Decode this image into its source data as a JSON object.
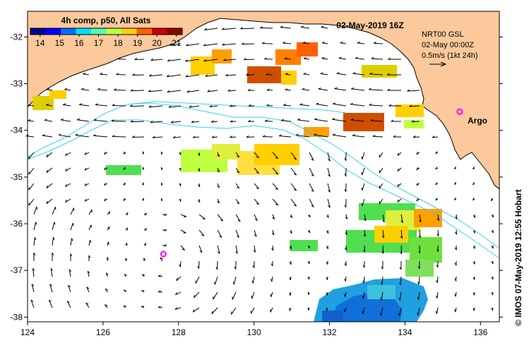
{
  "map": {
    "title": "02-May-2019 16Z",
    "colorbar": {
      "label": "4h comp, p50, All Sats",
      "ticks": [
        "14",
        "15",
        "16",
        "17",
        "18",
        "19",
        "20",
        "21"
      ],
      "min": 13.5,
      "max": 21.3,
      "colors": [
        "#00008f",
        "#0000ff",
        "#006fff",
        "#00dfff",
        "#4fffaf",
        "#bfff3f",
        "#ffcf00",
        "#ff6000",
        "#cf0000",
        "#8f0000"
      ]
    },
    "current_legend": {
      "line1": "NRT00 GSL",
      "line2": "02-May 00:00Z",
      "line3": "0.5m/s (1kt 24h)"
    },
    "argo_label": "Argo",
    "credit": "© IMOS 07-May-2019 12:55 Hobart",
    "lon_ticks": [
      "124",
      "126",
      "128",
      "130",
      "132",
      "134",
      "136"
    ],
    "lat_ticks": [
      "-32",
      "-33",
      "-34",
      "-35",
      "-36",
      "-37",
      "-38"
    ],
    "extent": {
      "lon_min": 124,
      "lon_max": 136.5,
      "lat_max": -31.45,
      "lat_min": -38.1
    },
    "argo_floats": [
      {
        "lon": 135.45,
        "lat": -33.6
      },
      {
        "lon": 127.6,
        "lat": -36.65
      }
    ],
    "colors": {
      "land": "#fbc99b",
      "ocean": "#ffffff",
      "argo": "#ff00ff",
      "contour": "#33d6e6"
    }
  }
}
